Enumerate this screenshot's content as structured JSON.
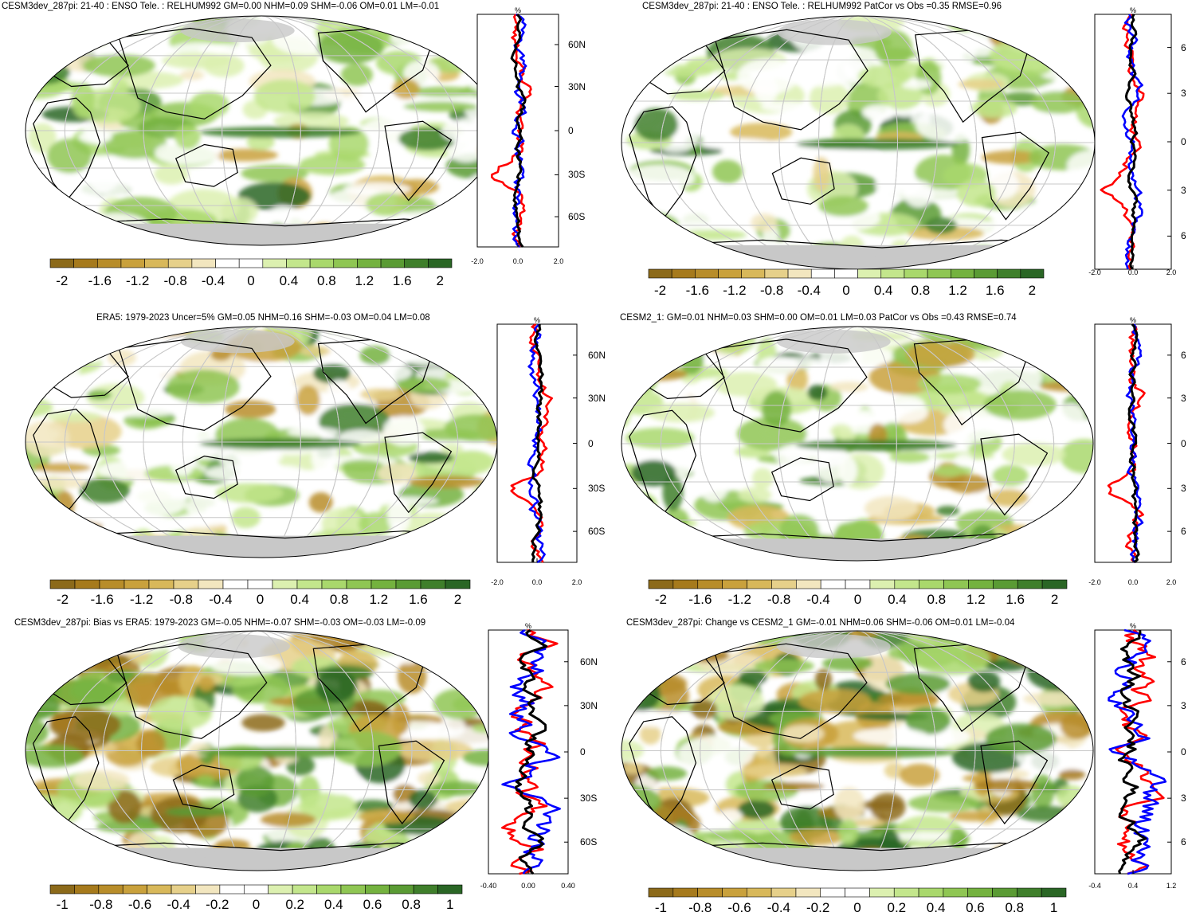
{
  "palette": {
    "brown_to_green": [
      "#8c6a1a",
      "#a67a1c",
      "#b88d2a",
      "#c9a13c",
      "#d8b85a",
      "#e6d08a",
      "#f2e6bf",
      "#ffffff",
      "#ffffff",
      "#dcf0b0",
      "#c3e68c",
      "#a9d86c",
      "#8fc653",
      "#74b23f",
      "#5a9b34",
      "#3f7f2b",
      "#2a6625"
    ],
    "land_missing": "#c8c8c8",
    "line_colors": {
      "model": "#000000",
      "obs": "#ff0000",
      "other": "#0000ff"
    }
  },
  "panels": [
    {
      "id": "p1",
      "title": "CESM3dev_287pi: 21-40 : ENSO Tele. : RELHUM992 GM=0.00 NHM=0.09 SHM=-0.06 OM=0.01 LM=-0.01",
      "colorbar_labels": [
        "-2",
        "-1.6",
        "-1.2",
        "-0.8",
        "-0.4",
        "0",
        "0.4",
        "0.8",
        "1.2",
        "1.6",
        "2"
      ],
      "zonal": {
        "unit": "%",
        "lat_labels": [
          "60N",
          "30N",
          "0",
          "30S",
          "60S"
        ],
        "x_ticks": [
          "-2.0",
          "0.0",
          "2.0"
        ]
      }
    },
    {
      "id": "p2",
      "title": "CESM3dev_287pi: 21-40 : ENSO Tele. : RELHUM992 PatCor vs Obs =0.35 RMSE=0.96",
      "colorbar_labels": [
        "-2",
        "-1.6",
        "-1.2",
        "-0.8",
        "-0.4",
        "0",
        "0.4",
        "0.8",
        "1.2",
        "1.6",
        "2"
      ],
      "zonal": {
        "unit": "%",
        "lat_labels": [
          "6",
          "3",
          "0",
          "3",
          "6"
        ],
        "x_ticks": [
          "-2.0",
          "0.0",
          "2.0"
        ]
      }
    },
    {
      "id": "p3",
      "title": "ERA5: 1979-2023 Uncer=5% GM=0.05 NHM=0.16 SHM=-0.03 OM=0.04 LM=0.08",
      "colorbar_labels": [
        "-2",
        "-1.6",
        "-1.2",
        "-0.8",
        "-0.4",
        "0",
        "0.4",
        "0.8",
        "1.2",
        "1.6",
        "2"
      ],
      "zonal": {
        "unit": "%",
        "lat_labels": [
          "60N",
          "30N",
          "0",
          "30S",
          "60S"
        ],
        "x_ticks": [
          "-2.0",
          "0.0",
          "2.0"
        ]
      }
    },
    {
      "id": "p4",
      "title": "CESM2_1: GM=0.01 NHM=0.03 SHM=0.00 OM=0.01 LM=0.03 PatCor vs Obs =0.43 RMSE=0.74",
      "colorbar_labels": [
        "-2",
        "-1.6",
        "-1.2",
        "-0.8",
        "-0.4",
        "0",
        "0.4",
        "0.8",
        "1.2",
        "1.6",
        "2"
      ],
      "zonal": {
        "unit": "%",
        "lat_labels": [
          "6",
          "3",
          "0",
          "3",
          "6"
        ],
        "x_ticks": [
          "-2.0",
          "0.0",
          "2.0"
        ]
      }
    },
    {
      "id": "p5",
      "title": "CESM3dev_287pi: Bias vs ERA5: 1979-2023 GM=-0.05 NHM=-0.07 SHM=-0.03 OM=-0.03 LM=-0.09",
      "colorbar_labels": [
        "-1",
        "-0.8",
        "-0.6",
        "-0.4",
        "-0.2",
        "0",
        "0.2",
        "0.4",
        "0.6",
        "0.8",
        "1"
      ],
      "zonal": {
        "unit": "%",
        "lat_labels": [
          "60N",
          "30N",
          "0",
          "30S",
          "60S"
        ],
        "x_ticks": [
          "-0.40",
          "0.00",
          "0.40"
        ]
      }
    },
    {
      "id": "p6",
      "title": "CESM3dev_287pi: Change vs CESM2_1 GM=-0.01 NHM=0.06 SHM=-0.06 OM=0.01 LM=-0.04",
      "colorbar_labels": [
        "-1",
        "-0.8",
        "-0.6",
        "-0.4",
        "-0.2",
        "0",
        "0.2",
        "0.4",
        "0.6",
        "0.8",
        "1"
      ],
      "zonal": {
        "unit": "%",
        "lat_labels": [
          "6",
          "3",
          "0",
          "3",
          "6"
        ],
        "x_ticks": [
          "-0.4",
          "0.4",
          "1.2"
        ]
      }
    }
  ]
}
